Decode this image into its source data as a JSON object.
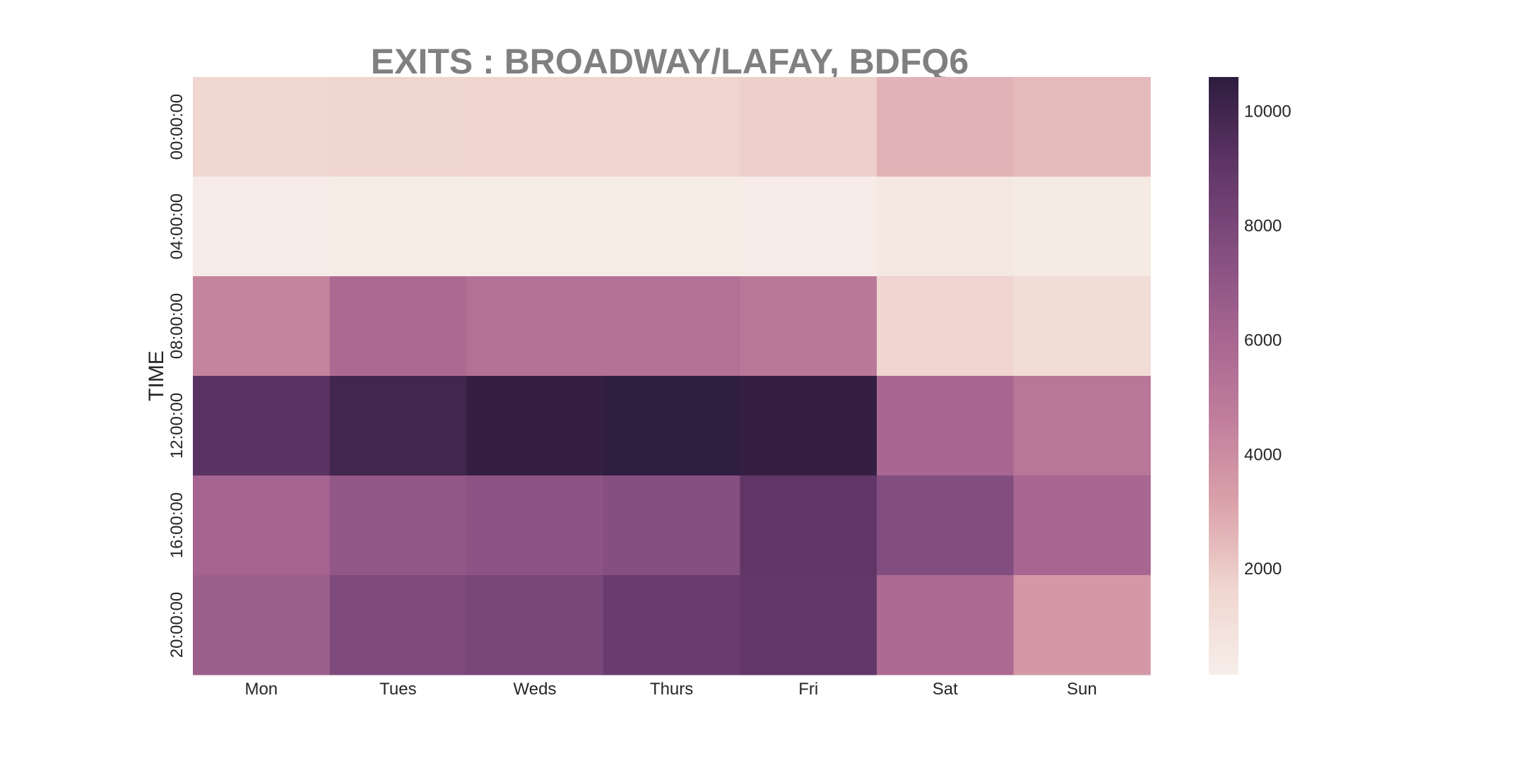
{
  "chart_data": {
    "type": "heatmap",
    "title": "EXITS : BROADWAY/LAFAY, BDFQ6",
    "xlabel": "",
    "ylabel": "TIME",
    "x_categories": [
      "Mon",
      "Tues",
      "Weds",
      "Thurs",
      "Fri",
      "Sat",
      "Sun"
    ],
    "y_categories": [
      "00:00:00",
      "04:00:00",
      "08:00:00",
      "12:00:00",
      "16:00:00",
      "20:00:00"
    ],
    "values": [
      [
        1600,
        1650,
        1700,
        1700,
        1850,
        2650,
        2450
      ],
      [
        330,
        300,
        300,
        300,
        310,
        500,
        420
      ],
      [
        4400,
        5800,
        5400,
        5400,
        5000,
        1700,
        1300
      ],
      [
        9200,
        10000,
        10400,
        10500,
        10400,
        6000,
        5100
      ],
      [
        6200,
        7000,
        7200,
        7500,
        9000,
        7600,
        6000
      ],
      [
        6500,
        7800,
        8000,
        8600,
        8900,
        5800,
        3600
      ]
    ],
    "vmin": 150,
    "vmax": 10600,
    "colorbar": {
      "ticks": [
        2000,
        4000,
        6000,
        8000,
        10000
      ],
      "tick_labels": [
        "2000",
        "4000",
        "6000",
        "8000",
        "10000"
      ]
    },
    "colors": {
      "stops": [
        "#f7eee9",
        "#f0d6d0",
        "#dba2aa",
        "#c07e9c",
        "#a66590",
        "#824d7f",
        "#5e3465",
        "#2d1c3e"
      ]
    }
  }
}
